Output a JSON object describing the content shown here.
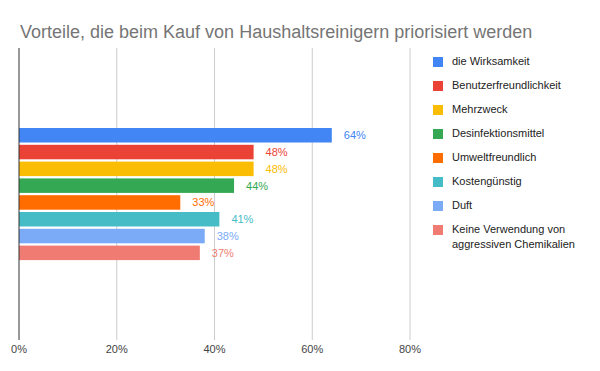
{
  "chart_data": {
    "type": "bar",
    "orientation": "horizontal",
    "title": "Vorteile, die beim Kauf von Haushaltsreinigern priorisiert werden",
    "categories": [
      "die Wirksamkeit",
      "Benutzerfreundlichkeit",
      "Mehrzweck",
      "Desinfektionsmittel",
      "Umweltfreundlich",
      "Kostengünstig",
      "Duft",
      "Keine Verwendung von aggressiven Chemikalien"
    ],
    "values": [
      64,
      48,
      48,
      44,
      33,
      41,
      38,
      37
    ],
    "value_labels": [
      "64%",
      "48%",
      "48%",
      "44%",
      "33%",
      "41%",
      "38%",
      "37%"
    ],
    "colors": [
      "#4285f4",
      "#ea4335",
      "#fbbc04",
      "#34a853",
      "#ff6d01",
      "#46bdc6",
      "#7baaf7",
      "#f07b72"
    ],
    "xlim": [
      0,
      80
    ],
    "xticks": [
      {
        "value": 0,
        "label": "0%"
      },
      {
        "value": 20,
        "label": "20%"
      },
      {
        "value": 40,
        "label": "40%"
      },
      {
        "value": 60,
        "label": "60%"
      },
      {
        "value": 80,
        "label": "80%"
      }
    ],
    "grid": true,
    "legend": "right",
    "data_labels": true
  }
}
